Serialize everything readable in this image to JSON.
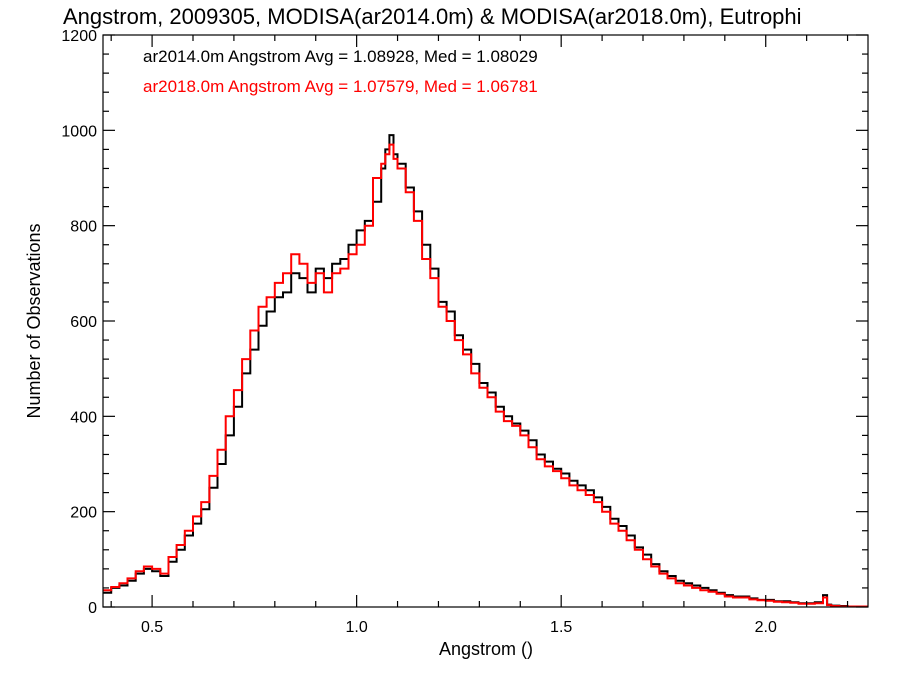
{
  "chart_data": {
    "type": "line",
    "step": true,
    "title": "Angstrom, 2009305, MODISA(ar2014.0m) & MODISA(ar2018.0m), Eutrophi",
    "xlabel": "Angstrom ()",
    "ylabel": "Number of Observations",
    "xlim": [
      0.38,
      2.25
    ],
    "ylim": [
      0,
      1200
    ],
    "x_ticks": [
      0.5,
      1.0,
      1.5,
      2.0
    ],
    "x_tick_labels": [
      "0.5",
      "1.0",
      "1.5",
      "2.0"
    ],
    "y_ticks": [
      0,
      200,
      400,
      600,
      800,
      1000,
      1200
    ],
    "y_tick_labels": [
      "0",
      "200",
      "400",
      "600",
      "800",
      "1000",
      "1200"
    ],
    "annotations": [
      {
        "text": "ar2014.0m Angstrom Avg = 1.08928, Med = 1.08029",
        "color": "#000000"
      },
      {
        "text": "ar2018.0m Angstrom Avg = 1.07579, Med = 1.06781",
        "color": "#ff0000"
      }
    ],
    "series": [
      {
        "color": "#000000",
        "x": [
          0.38,
          0.4,
          0.42,
          0.44,
          0.46,
          0.48,
          0.5,
          0.52,
          0.54,
          0.56,
          0.58,
          0.6,
          0.62,
          0.64,
          0.66,
          0.68,
          0.7,
          0.72,
          0.74,
          0.76,
          0.78,
          0.8,
          0.82,
          0.84,
          0.86,
          0.88,
          0.9,
          0.92,
          0.94,
          0.96,
          0.98,
          1.0,
          1.02,
          1.04,
          1.06,
          1.07,
          1.08,
          1.09,
          1.1,
          1.12,
          1.14,
          1.16,
          1.18,
          1.2,
          1.22,
          1.24,
          1.26,
          1.28,
          1.3,
          1.32,
          1.34,
          1.36,
          1.38,
          1.4,
          1.42,
          1.44,
          1.46,
          1.48,
          1.5,
          1.52,
          1.54,
          1.56,
          1.58,
          1.6,
          1.62,
          1.64,
          1.66,
          1.68,
          1.7,
          1.72,
          1.74,
          1.76,
          1.78,
          1.8,
          1.82,
          1.84,
          1.86,
          1.88,
          1.9,
          1.92,
          1.94,
          1.96,
          1.98,
          2.0,
          2.02,
          2.04,
          2.06,
          2.08,
          2.1,
          2.12,
          2.14,
          2.15,
          2.16,
          2.18,
          2.2,
          2.22,
          2.25
        ],
        "y": [
          30,
          40,
          45,
          55,
          70,
          80,
          75,
          65,
          95,
          120,
          150,
          175,
          205,
          250,
          300,
          360,
          420,
          490,
          540,
          590,
          620,
          650,
          660,
          700,
          690,
          660,
          710,
          690,
          720,
          730,
          760,
          790,
          810,
          850,
          920,
          960,
          990,
          950,
          930,
          880,
          830,
          760,
          710,
          640,
          620,
          570,
          540,
          510,
          470,
          450,
          420,
          400,
          385,
          370,
          350,
          320,
          305,
          290,
          280,
          265,
          255,
          245,
          230,
          210,
          185,
          170,
          150,
          125,
          110,
          90,
          75,
          65,
          55,
          50,
          45,
          40,
          35,
          30,
          25,
          22,
          22,
          18,
          15,
          15,
          12,
          12,
          10,
          8,
          8,
          10,
          25,
          5,
          3,
          2,
          1,
          1,
          1
        ]
      },
      {
        "color": "#ff0000",
        "x": [
          0.38,
          0.4,
          0.42,
          0.44,
          0.46,
          0.48,
          0.5,
          0.52,
          0.54,
          0.56,
          0.58,
          0.6,
          0.62,
          0.64,
          0.66,
          0.68,
          0.7,
          0.72,
          0.74,
          0.76,
          0.78,
          0.8,
          0.82,
          0.84,
          0.86,
          0.88,
          0.9,
          0.92,
          0.94,
          0.96,
          0.98,
          1.0,
          1.02,
          1.04,
          1.06,
          1.07,
          1.08,
          1.09,
          1.1,
          1.12,
          1.14,
          1.16,
          1.18,
          1.2,
          1.22,
          1.24,
          1.26,
          1.28,
          1.3,
          1.32,
          1.34,
          1.36,
          1.38,
          1.4,
          1.42,
          1.44,
          1.46,
          1.48,
          1.5,
          1.52,
          1.54,
          1.56,
          1.58,
          1.6,
          1.62,
          1.64,
          1.66,
          1.68,
          1.7,
          1.72,
          1.74,
          1.76,
          1.78,
          1.8,
          1.82,
          1.84,
          1.86,
          1.88,
          1.9,
          1.92,
          1.94,
          1.96,
          1.98,
          2.0,
          2.02,
          2.04,
          2.06,
          2.08,
          2.1,
          2.12,
          2.14,
          2.15,
          2.16,
          2.18,
          2.2,
          2.22,
          2.25
        ],
        "y": [
          35,
          42,
          50,
          60,
          75,
          85,
          80,
          70,
          105,
          130,
          160,
          190,
          220,
          275,
          330,
          400,
          455,
          520,
          580,
          630,
          650,
          680,
          700,
          740,
          720,
          680,
          700,
          660,
          700,
          710,
          740,
          760,
          800,
          900,
          930,
          950,
          970,
          940,
          920,
          870,
          810,
          730,
          690,
          630,
          600,
          560,
          530,
          490,
          460,
          440,
          410,
          390,
          380,
          360,
          335,
          310,
          295,
          285,
          270,
          255,
          245,
          235,
          220,
          200,
          175,
          160,
          140,
          120,
          100,
          85,
          70,
          60,
          50,
          45,
          40,
          35,
          32,
          28,
          22,
          20,
          20,
          16,
          14,
          13,
          11,
          10,
          9,
          7,
          7,
          8,
          20,
          4,
          2,
          1,
          1,
          1,
          1
        ]
      }
    ]
  }
}
